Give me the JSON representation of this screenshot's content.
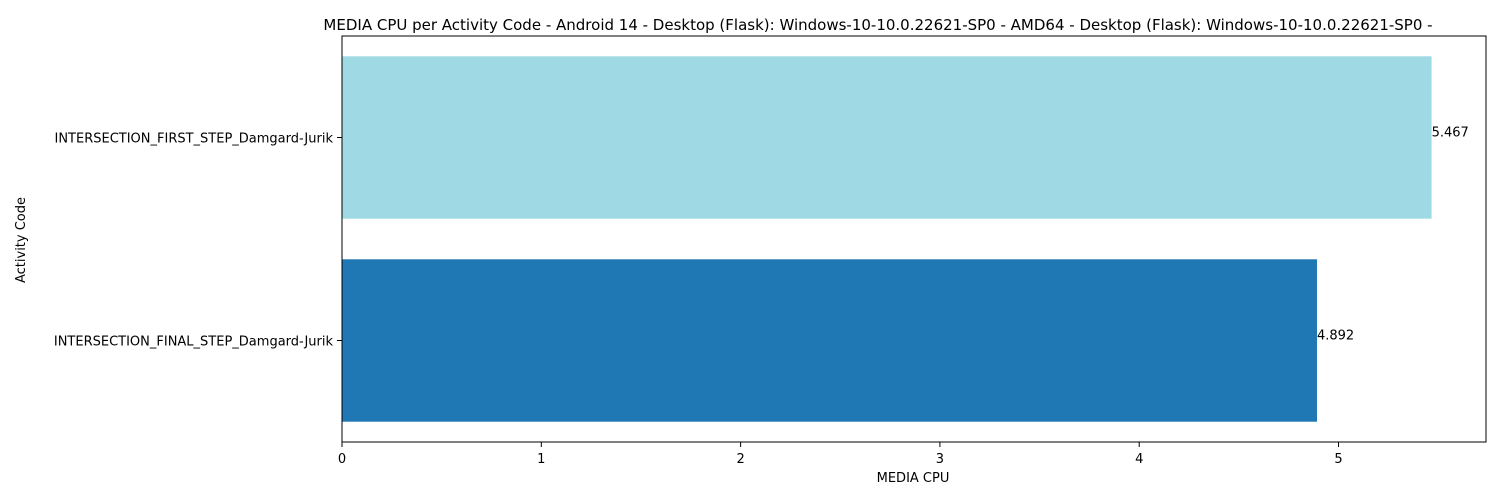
{
  "chart_data": {
    "type": "bar",
    "orientation": "horizontal",
    "title": "MEDIA CPU per Activity Code - Android 14 - Desktop (Flask): Windows-10-10.0.22621-SP0 - AMD64 - Desktop (Flask): Windows-10-10.0.22621-SP0 -",
    "xlabel": "MEDIA CPU",
    "ylabel": "Activity Code",
    "categories": [
      "INTERSECTION_FIRST_STEP_Damgard-Jurik",
      "INTERSECTION_FINAL_STEP_Damgard-Jurik"
    ],
    "values": [
      5.467,
      4.892
    ],
    "value_labels": [
      "5.467",
      "4.892"
    ],
    "bar_colors": [
      "#9fdae4",
      "#1f77b4"
    ],
    "xticks": [
      "0",
      "1",
      "2",
      "3",
      "4",
      "5"
    ],
    "xlim": [
      0,
      5.74
    ],
    "grid": false,
    "legend": "none"
  }
}
